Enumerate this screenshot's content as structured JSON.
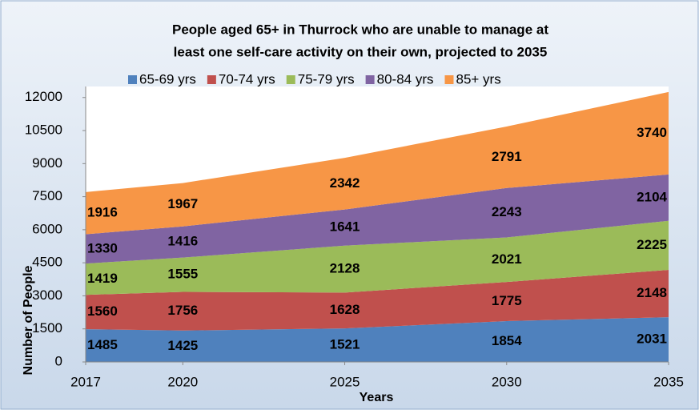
{
  "chart_data": {
    "type": "stacked_area",
    "title": [
      "People aged 65+ in Thurrock who are unable to manage at",
      "least one self-care activity on their own, projected to 2035"
    ],
    "x": [
      2017,
      2020,
      2025,
      2030,
      2035
    ],
    "series": [
      {
        "name": "65-69 yrs",
        "color": "#4f81bd",
        "values": [
          1485,
          1425,
          1521,
          1854,
          2031
        ]
      },
      {
        "name": "70-74 yrs",
        "color": "#c0504d",
        "values": [
          1560,
          1756,
          1628,
          1775,
          2148
        ]
      },
      {
        "name": "75-79 yrs",
        "color": "#9bbb59",
        "values": [
          1419,
          1555,
          2128,
          2021,
          2225
        ]
      },
      {
        "name": "80-84 yrs",
        "color": "#8064a2",
        "values": [
          1330,
          1416,
          1641,
          2243,
          2104
        ]
      },
      {
        "name": "85+ yrs",
        "color": "#f79646",
        "values": [
          1916,
          1967,
          2342,
          2791,
          3740
        ]
      }
    ],
    "xlim": [
      2017,
      2035
    ],
    "xticks": [
      2017,
      2020,
      2025,
      2030,
      2035
    ],
    "ylim": [
      0,
      12500
    ],
    "yticks": [
      0,
      1500,
      3000,
      4500,
      6000,
      7500,
      9000,
      10500,
      12000
    ],
    "x_label": "Years",
    "y_label": "Number of People",
    "legend": "top"
  }
}
